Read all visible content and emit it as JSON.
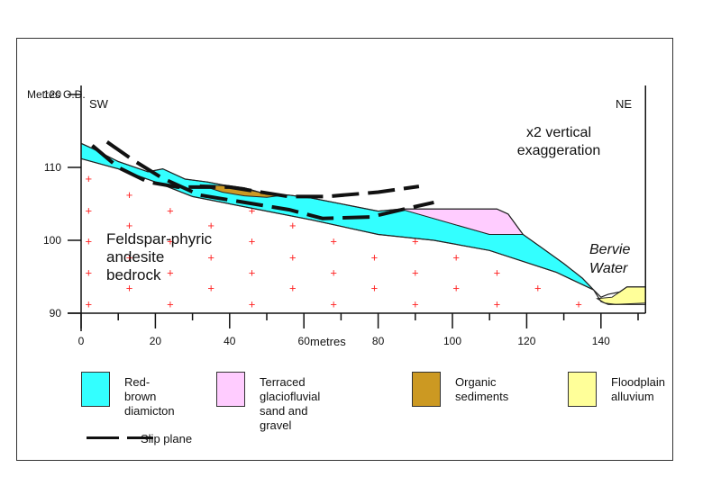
{
  "figure": {
    "y_axis_title": "Metres O.D.",
    "x_axis_title": "metres",
    "direction_left": "SW",
    "direction_right": "NE",
    "exaggeration_note": "x2 vertical\nexaggeration",
    "bedrock_label": "Feldspar-phyric\nandesite\nbedrock",
    "river_label": "Bervie\nWater"
  },
  "chart_data": {
    "type": "cross-section",
    "title": "",
    "xlabel": "metres",
    "ylabel": "Metres O.D.",
    "xlim": [
      0,
      152
    ],
    "ylim": [
      90,
      120
    ],
    "x_ticks_major": [
      0,
      20,
      40,
      60,
      80,
      100,
      120,
      140
    ],
    "x_ticks_minor": [
      10,
      30,
      50,
      70,
      90,
      110,
      130,
      150
    ],
    "y_ticks": [
      90,
      100,
      110,
      120
    ],
    "vertical_exaggeration": 2,
    "units": [
      {
        "name": "Red-brown diamicton",
        "color": "#33ffff",
        "polygon": [
          [
            0,
            113.3
          ],
          [
            3,
            112.6
          ],
          [
            10,
            110.8
          ],
          [
            18,
            109.4
          ],
          [
            22,
            109.8
          ],
          [
            28,
            108.4
          ],
          [
            34,
            108.0
          ],
          [
            38,
            107.6
          ],
          [
            44,
            107.2
          ],
          [
            50,
            106.3
          ],
          [
            56,
            106.2
          ],
          [
            62,
            105.8
          ],
          [
            72,
            104.8
          ],
          [
            80,
            104.0
          ],
          [
            86,
            104.3
          ],
          [
            110,
            100.8
          ],
          [
            119,
            100.8
          ],
          [
            124,
            99.0
          ],
          [
            130,
            96.8
          ],
          [
            135,
            94.8
          ],
          [
            138,
            93.2
          ],
          [
            128,
            95.6
          ],
          [
            110,
            98.6
          ],
          [
            95,
            100.0
          ],
          [
            80,
            100.8
          ],
          [
            62,
            102.8
          ],
          [
            50,
            104.0
          ],
          [
            30,
            106.0
          ],
          [
            20,
            108.0
          ],
          [
            10,
            109.8
          ],
          [
            0,
            111.2
          ]
        ]
      },
      {
        "name": "Terraced glaciofluvial sand and gravel",
        "color": "#ffccff",
        "polygon": [
          [
            86,
            104.3
          ],
          [
            112,
            104.3
          ],
          [
            115,
            103.6
          ],
          [
            119,
            100.8
          ],
          [
            110,
            100.8
          ]
        ]
      },
      {
        "name": "Organic sediments",
        "color": "#cc9922",
        "polygon": [
          [
            32,
            107.6
          ],
          [
            38,
            107.5
          ],
          [
            44,
            107.0
          ],
          [
            48,
            106.6
          ],
          [
            53,
            106.1
          ],
          [
            50,
            105.9
          ],
          [
            44,
            106.1
          ],
          [
            38,
            106.6
          ]
        ]
      },
      {
        "name": "Floodplain alluvium",
        "color": "#ffff99",
        "polygon": [
          [
            139,
            92.0
          ],
          [
            143,
            92.2
          ],
          [
            145,
            92.9
          ],
          [
            147,
            93.6
          ],
          [
            152,
            93.6
          ],
          [
            152,
            91.4
          ],
          [
            144,
            91.2
          ],
          [
            141,
            91.4
          ]
        ]
      }
    ],
    "ground_surface": [
      [
        0,
        113.3
      ],
      [
        3,
        112.6
      ],
      [
        10,
        110.8
      ],
      [
        18,
        109.4
      ],
      [
        22,
        109.8
      ],
      [
        28,
        108.4
      ],
      [
        34,
        108.0
      ],
      [
        38,
        107.6
      ],
      [
        44,
        107.2
      ],
      [
        50,
        106.3
      ],
      [
        56,
        106.2
      ],
      [
        62,
        105.8
      ],
      [
        72,
        104.8
      ],
      [
        80,
        104.0
      ],
      [
        86,
        104.3
      ],
      [
        112,
        104.3
      ],
      [
        115,
        103.6
      ],
      [
        119,
        100.8
      ],
      [
        124,
        99.0
      ],
      [
        130,
        96.8
      ],
      [
        135,
        94.8
      ],
      [
        138,
        93.2
      ],
      [
        140,
        92.2
      ],
      [
        142,
        92.6
      ],
      [
        145,
        92.9
      ],
      [
        147,
        93.6
      ],
      [
        152,
        93.6
      ]
    ],
    "bedrock_surface": [
      [
        0,
        111.2
      ],
      [
        10,
        109.8
      ],
      [
        20,
        108.0
      ],
      [
        30,
        106.0
      ],
      [
        50,
        104.0
      ],
      [
        62,
        102.8
      ],
      [
        80,
        100.8
      ],
      [
        95,
        100.0
      ],
      [
        110,
        98.6
      ],
      [
        128,
        95.6
      ],
      [
        138,
        93.2
      ],
      [
        140,
        91.6
      ],
      [
        142,
        91.2
      ],
      [
        152,
        91.2
      ]
    ],
    "slip_planes": [
      [
        [
          3,
          113.0
        ],
        [
          10,
          110.0
        ],
        [
          18,
          108.0
        ],
        [
          26,
          107.3
        ],
        [
          40,
          107.3
        ],
        [
          56,
          106.0
        ],
        [
          66,
          106.0
        ],
        [
          80,
          106.6
        ],
        [
          91,
          107.4
        ]
      ],
      [
        [
          7,
          113.5
        ],
        [
          14,
          111.0
        ],
        [
          22,
          108.5
        ],
        [
          32,
          106.2
        ],
        [
          44,
          105.2
        ],
        [
          56,
          104.2
        ],
        [
          65,
          103.0
        ],
        [
          78,
          103.2
        ],
        [
          88,
          104.4
        ],
        [
          95,
          105.2
        ]
      ]
    ],
    "legend": [
      {
        "label": "Red-brown\ndiamicton",
        "color": "#33ffff"
      },
      {
        "label": "Terraced glaciofluvial\nsand and gravel",
        "color": "#ffccff"
      },
      {
        "label": "Organic\nsediments",
        "color": "#cc9922"
      },
      {
        "label": "Floodplain\nalluvium",
        "color": "#ffff99"
      },
      {
        "label": "Slip plane",
        "style": "dashed-line",
        "color": "#111111"
      }
    ],
    "bedrock_pattern": {
      "symbol": "+",
      "color": "#ff2222"
    }
  }
}
